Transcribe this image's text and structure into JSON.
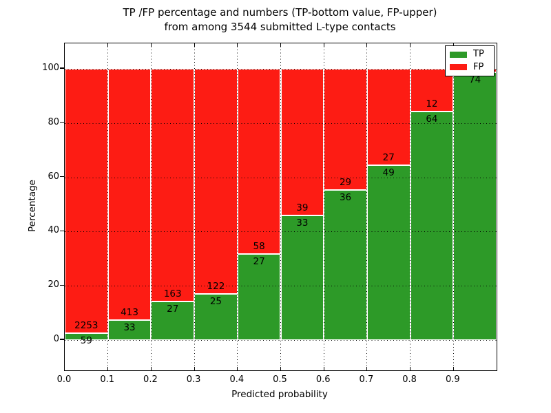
{
  "title": {
    "line1": "TP /FP percentage and numbers (TP-bottom value, FP-upper)",
    "line2": "from among 3544 submitted L-type contacts"
  },
  "axes": {
    "xlabel": "Predicted probability",
    "ylabel": "Percentage",
    "x_tick_labels": [
      "0.0",
      "0.1",
      "0.2",
      "0.3",
      "0.4",
      "0.5",
      "0.6",
      "0.7",
      "0.8",
      "0.9"
    ],
    "y_tick_labels": [
      "0",
      "20",
      "40",
      "60",
      "80",
      "100"
    ],
    "y_tick_values": [
      0,
      20,
      40,
      60,
      80,
      100
    ],
    "xlim": [
      0.0,
      1.0
    ],
    "grid_style": "dotted"
  },
  "legend": {
    "items": [
      {
        "label": "TP",
        "color_key": "tp_green"
      },
      {
        "label": "FP",
        "color_key": "fp_red"
      }
    ]
  },
  "colors": {
    "tp_green": "#2d9a28",
    "fp_red": "#fd1c14",
    "bar_edge": "#ffffff",
    "grid": "#000000",
    "background": "#ffffff"
  },
  "chart_data": {
    "type": "bar",
    "stacked": true,
    "orientation": "vertical",
    "x_bin_starts": [
      0.0,
      0.1,
      0.2,
      0.3,
      0.4,
      0.5,
      0.6,
      0.7,
      0.8,
      0.9
    ],
    "bin_width": 0.1,
    "ylabel": "Percentage",
    "xlabel": "Predicted probability",
    "ylim_shown_ticks": [
      0,
      100
    ],
    "series": [
      {
        "name": "TP",
        "counts": [
          59,
          33,
          27,
          25,
          27,
          33,
          36,
          49,
          64,
          74
        ],
        "pct": [
          2.55,
          7.4,
          14.21,
          17.01,
          31.76,
          45.83,
          55.38,
          64.47,
          84.21,
          98.67
        ]
      },
      {
        "name": "FP",
        "counts": [
          2253,
          413,
          163,
          122,
          58,
          39,
          29,
          27,
          12,
          null
        ],
        "pct": [
          97.45,
          92.6,
          85.79,
          82.99,
          68.24,
          54.17,
          44.62,
          35.53,
          15.79,
          1.33
        ]
      }
    ],
    "bar_labels": {
      "tp": [
        "59",
        "33",
        "27",
        "25",
        "27",
        "33",
        "36",
        "49",
        "64",
        "74"
      ],
      "fp": [
        "2253",
        "413",
        "163",
        "122",
        "58",
        "39",
        "29",
        "27",
        "12",
        ""
      ]
    }
  }
}
